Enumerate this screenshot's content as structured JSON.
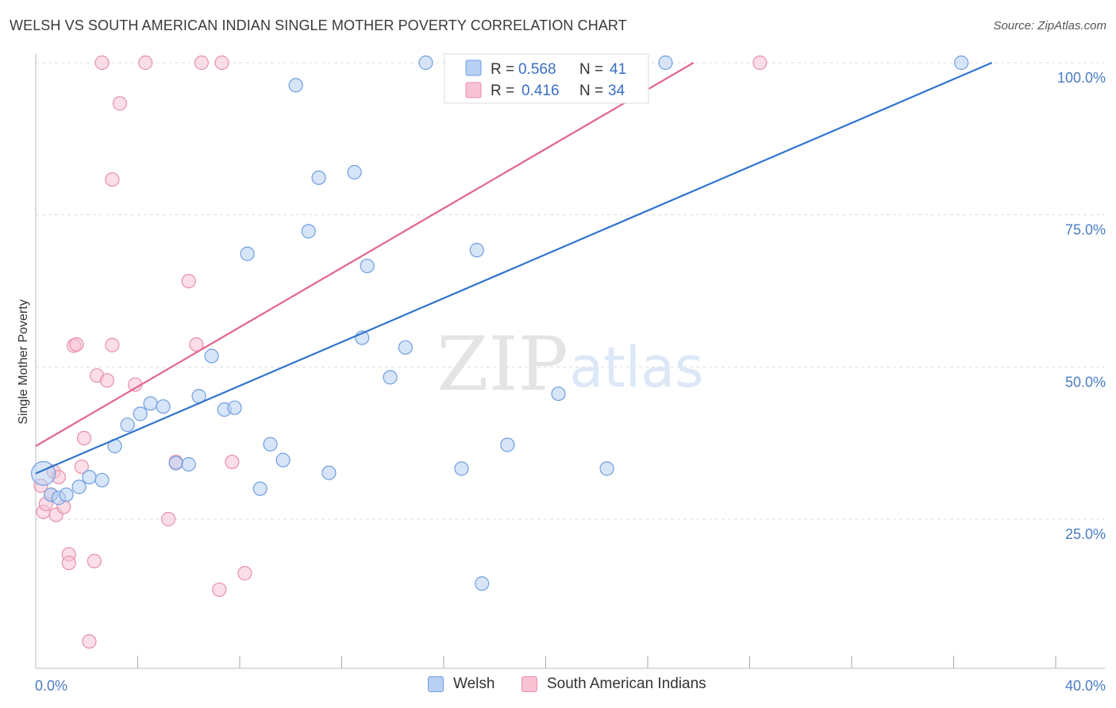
{
  "title": "WELSH VS SOUTH AMERICAN INDIAN SINGLE MOTHER POVERTY CORRELATION CHART",
  "source": "Source: ZipAtlas.com",
  "watermark": {
    "zip": "ZIP",
    "atlas": "atlas"
  },
  "colors": {
    "welsh_fill": "#b7d0f3",
    "welsh_stroke": "#6f9ee0",
    "welsh_line": "#2f74cf",
    "sai_fill": "#f8c2d3",
    "sai_stroke": "#e88fab",
    "sai_line": "#e0668d",
    "grid": "#dddddd",
    "tick_label": "#4a7cc4"
  },
  "legend": {
    "rows": [
      {
        "r_label": "R =",
        "r_value": "0.568",
        "n_label": "N =",
        "n_value": "41"
      },
      {
        "r_label": "R =",
        "r_value": "0.416",
        "n_label": "N =",
        "n_value": "34"
      }
    ]
  },
  "bottom_legend": {
    "welsh": "Welsh",
    "sai": "South American Indians"
  },
  "chart_data": {
    "type": "scatter",
    "title": "WELSH VS SOUTH AMERICAN INDIAN SINGLE MOTHER POVERTY CORRELATION CHART",
    "xlabel": "",
    "ylabel": "Single Mother Poverty",
    "xlim": [
      0,
      40
    ],
    "ylim": [
      2,
      104
    ],
    "x_tick_labels": [
      "0.0%",
      "40.0%"
    ],
    "y_ticks": [
      25,
      50,
      75,
      100
    ],
    "y_tick_labels": [
      "25.0%",
      "50.0%",
      "75.0%",
      "100.0%"
    ],
    "grid": true,
    "legend_placement": "top-center",
    "series": [
      {
        "name": "Welsh",
        "r": 0.568,
        "n": 41,
        "trend": {
          "x": [
            0,
            37.5
          ],
          "y": [
            32.5,
            100
          ]
        },
        "points": [
          {
            "x": 0.3,
            "y": 32.5,
            "big": true
          },
          {
            "x": 0.6,
            "y": 29.0
          },
          {
            "x": 0.9,
            "y": 28.5
          },
          {
            "x": 1.2,
            "y": 29.0
          },
          {
            "x": 1.7,
            "y": 30.3
          },
          {
            "x": 2.1,
            "y": 31.9
          },
          {
            "x": 2.6,
            "y": 31.4
          },
          {
            "x": 3.1,
            "y": 37.0
          },
          {
            "x": 3.6,
            "y": 40.5
          },
          {
            "x": 4.1,
            "y": 42.3
          },
          {
            "x": 4.5,
            "y": 44.0
          },
          {
            "x": 5.0,
            "y": 43.5
          },
          {
            "x": 5.5,
            "y": 34.2
          },
          {
            "x": 6.0,
            "y": 34.0
          },
          {
            "x": 6.4,
            "y": 45.2
          },
          {
            "x": 6.9,
            "y": 51.8
          },
          {
            "x": 7.4,
            "y": 43.0
          },
          {
            "x": 7.8,
            "y": 43.3
          },
          {
            "x": 8.3,
            "y": 68.6
          },
          {
            "x": 8.8,
            "y": 30.0
          },
          {
            "x": 9.2,
            "y": 37.3
          },
          {
            "x": 9.7,
            "y": 34.7
          },
          {
            "x": 10.2,
            "y": 96.3
          },
          {
            "x": 10.7,
            "y": 72.3
          },
          {
            "x": 11.1,
            "y": 81.1
          },
          {
            "x": 11.5,
            "y": 32.6
          },
          {
            "x": 12.5,
            "y": 82.0
          },
          {
            "x": 12.8,
            "y": 54.8
          },
          {
            "x": 13.0,
            "y": 66.6
          },
          {
            "x": 13.9,
            "y": 48.3
          },
          {
            "x": 14.5,
            "y": 53.2
          },
          {
            "x": 15.3,
            "y": 100.0
          },
          {
            "x": 16.7,
            "y": 33.3
          },
          {
            "x": 17.3,
            "y": 69.2
          },
          {
            "x": 17.5,
            "y": 14.4
          },
          {
            "x": 18.5,
            "y": 37.2
          },
          {
            "x": 20.5,
            "y": 45.6
          },
          {
            "x": 22.4,
            "y": 33.3
          },
          {
            "x": 24.7,
            "y": 100.0
          },
          {
            "x": 36.3,
            "y": 100.0
          },
          {
            "x": 20.0,
            "y": 100.0
          }
        ]
      },
      {
        "name": "South American Indians",
        "r": 0.416,
        "n": 34,
        "trend": {
          "x": [
            0,
            25.8
          ],
          "y": [
            37.0,
            100
          ]
        },
        "points": [
          {
            "x": 0.2,
            "y": 30.5
          },
          {
            "x": 0.3,
            "y": 26.2
          },
          {
            "x": 0.4,
            "y": 27.5
          },
          {
            "x": 0.6,
            "y": 29.0
          },
          {
            "x": 0.7,
            "y": 32.8
          },
          {
            "x": 0.8,
            "y": 25.7
          },
          {
            "x": 0.9,
            "y": 31.9
          },
          {
            "x": 1.1,
            "y": 27.0
          },
          {
            "x": 1.3,
            "y": 19.2
          },
          {
            "x": 1.3,
            "y": 17.8
          },
          {
            "x": 1.5,
            "y": 53.5
          },
          {
            "x": 1.6,
            "y": 53.7
          },
          {
            "x": 1.8,
            "y": 33.6
          },
          {
            "x": 1.9,
            "y": 38.3
          },
          {
            "x": 2.1,
            "y": 4.9
          },
          {
            "x": 2.3,
            "y": 18.1
          },
          {
            "x": 2.4,
            "y": 48.6
          },
          {
            "x": 2.6,
            "y": 100.0
          },
          {
            "x": 2.8,
            "y": 47.8
          },
          {
            "x": 3.0,
            "y": 80.8
          },
          {
            "x": 3.0,
            "y": 53.6
          },
          {
            "x": 3.3,
            "y": 93.3
          },
          {
            "x": 3.9,
            "y": 47.1
          },
          {
            "x": 4.3,
            "y": 100.0
          },
          {
            "x": 5.2,
            "y": 25.0
          },
          {
            "x": 5.5,
            "y": 34.4
          },
          {
            "x": 6.0,
            "y": 64.1
          },
          {
            "x": 6.3,
            "y": 53.7
          },
          {
            "x": 6.5,
            "y": 100.0
          },
          {
            "x": 7.2,
            "y": 13.4
          },
          {
            "x": 7.3,
            "y": 100.0
          },
          {
            "x": 7.7,
            "y": 34.4
          },
          {
            "x": 8.2,
            "y": 16.1
          },
          {
            "x": 28.4,
            "y": 100.0
          }
        ]
      }
    ]
  }
}
